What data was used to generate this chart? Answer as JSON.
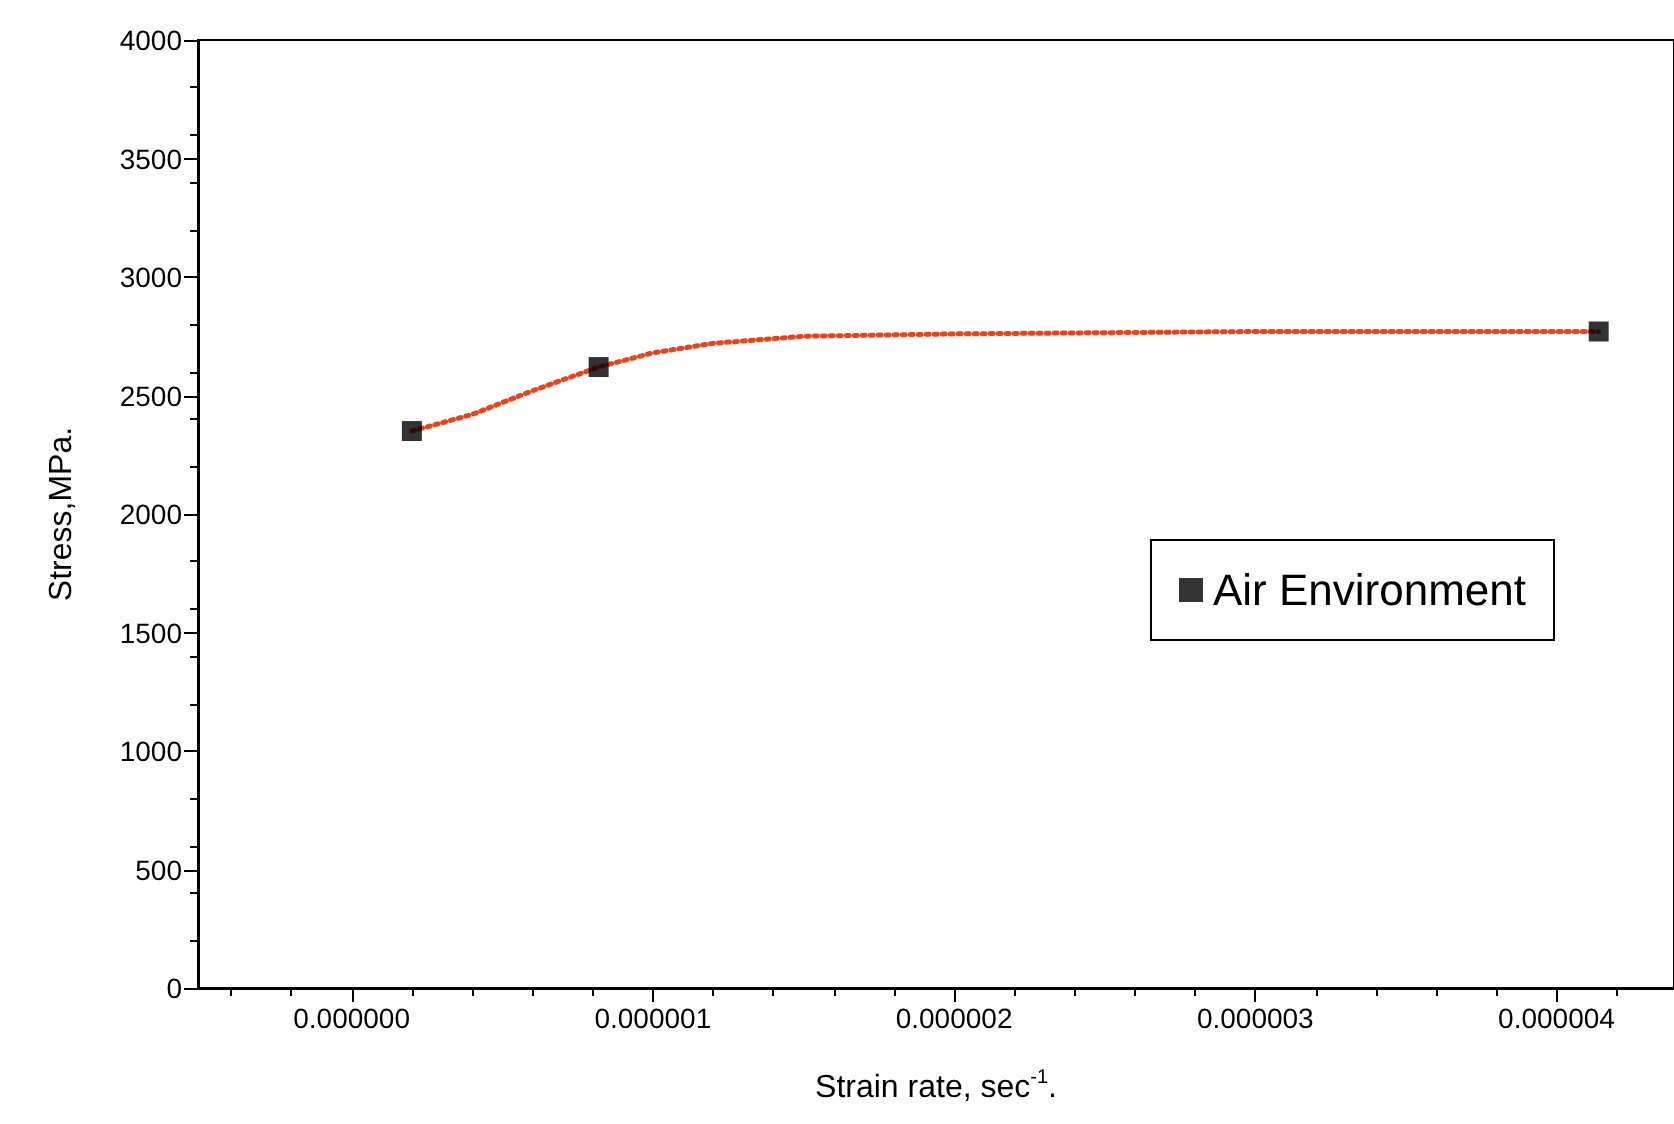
{
  "chart_data": {
    "type": "scatter",
    "xlabel": "Strain rate, sec$^{-1}$.",
    "ylabel": "Stress,MPa.",
    "xlim": [
      -5.1e-07,
      4.39e-06
    ],
    "xticks": [
      {
        "value": 0,
        "label": "0.000000"
      },
      {
        "value": 1e-06,
        "label": "0.000001"
      },
      {
        "value": 2e-06,
        "label": "0.000002"
      },
      {
        "value": 3e-06,
        "label": "0.000003"
      },
      {
        "value": 4e-06,
        "label": "0.000004"
      }
    ],
    "ylim": [
      0,
      4000
    ],
    "yticks": [
      0,
      500,
      1000,
      1500,
      2000,
      2500,
      3000,
      3500,
      4000
    ],
    "series": [
      {
        "name": "Air Environment",
        "color": "#000000",
        "marker": "square",
        "x": [
          2e-07,
          8.2e-07,
          4.14e-06
        ],
        "values": [
          2350,
          2620,
          2770
        ]
      },
      {
        "type": "line",
        "color": "#e8431c",
        "line_style": "dotted",
        "marker": "none",
        "x": [
          2e-07,
          4e-07,
          6e-07,
          8.2e-07,
          1e-06,
          1.2e-06,
          1.5e-06,
          2e-06,
          3e-06,
          4.14e-06
        ],
        "values": [
          2350,
          2420,
          2520,
          2620,
          2680,
          2720,
          2750,
          2760,
          2770,
          2770
        ]
      }
    ],
    "legend": "right",
    "grid": false
  }
}
